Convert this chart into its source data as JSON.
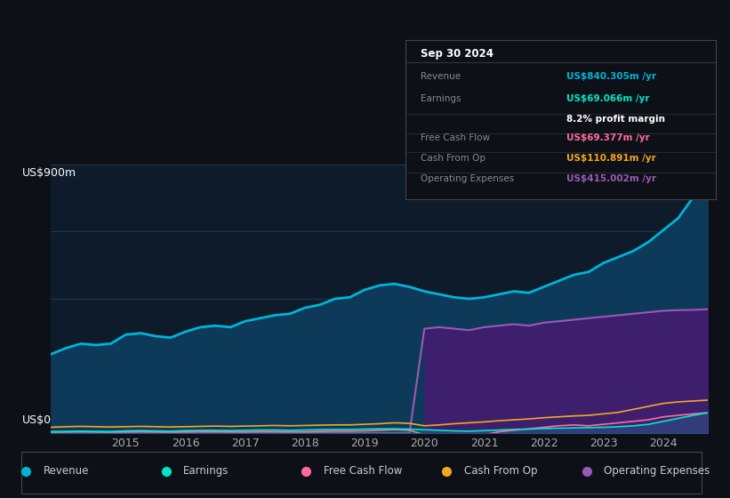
{
  "background_color": "#0d1117",
  "plot_bg_color": "#0d1b2a",
  "y_label_top": "US$900m",
  "y_label_bottom": "US$0",
  "colors": {
    "revenue": "#00b4d8",
    "earnings": "#00e5c8",
    "free_cash_flow": "#ff6b9d",
    "cash_from_op": "#f5a623",
    "operating_expenses": "#9b59b6"
  },
  "revenue_fill": "#0e3a5a",
  "op_exp_fill": "#3d1f6e",
  "legend_items": [
    {
      "label": "Revenue",
      "color": "#00b4d8"
    },
    {
      "label": "Earnings",
      "color": "#00e5c8"
    },
    {
      "label": "Free Cash Flow",
      "color": "#ff6b9d"
    },
    {
      "label": "Cash From Op",
      "color": "#f5a623"
    },
    {
      "label": "Operating Expenses",
      "color": "#9b59b6"
    }
  ],
  "infobox": {
    "title": "Sep 30 2024",
    "rows": [
      {
        "label": "Revenue",
        "value": "US$840.305m /yr",
        "color": "#00b4d8"
      },
      {
        "label": "Earnings",
        "value": "US$69.066m /yr",
        "color": "#00e5c8"
      },
      {
        "label": "",
        "value": "8.2% profit margin",
        "color": "#ffffff"
      },
      {
        "label": "Free Cash Flow",
        "value": "US$69.377m /yr",
        "color": "#ff6b9d"
      },
      {
        "label": "Cash From Op",
        "value": "US$110.891m /yr",
        "color": "#f5a623"
      },
      {
        "label": "Operating Expenses",
        "value": "US$415.002m /yr",
        "color": "#9b59b6"
      }
    ]
  },
  "x_ticks": [
    2015,
    2016,
    2017,
    2018,
    2019,
    2020,
    2021,
    2022,
    2023,
    2024
  ],
  "years": [
    2013.75,
    2014.0,
    2014.25,
    2014.5,
    2014.75,
    2015.0,
    2015.25,
    2015.5,
    2015.75,
    2016.0,
    2016.25,
    2016.5,
    2016.75,
    2017.0,
    2017.25,
    2017.5,
    2017.75,
    2018.0,
    2018.25,
    2018.5,
    2018.75,
    2019.0,
    2019.25,
    2019.5,
    2019.75,
    2020.0,
    2020.25,
    2020.5,
    2020.75,
    2021.0,
    2021.25,
    2021.5,
    2021.75,
    2022.0,
    2022.25,
    2022.5,
    2022.75,
    2023.0,
    2023.25,
    2023.5,
    2023.75,
    2024.0,
    2024.25,
    2024.5,
    2024.75
  ],
  "revenue": [
    265,
    285,
    300,
    295,
    300,
    330,
    335,
    325,
    320,
    340,
    355,
    360,
    355,
    375,
    385,
    395,
    400,
    420,
    430,
    450,
    455,
    480,
    495,
    500,
    490,
    475,
    465,
    455,
    450,
    455,
    465,
    475,
    470,
    490,
    510,
    530,
    540,
    570,
    590,
    610,
    640,
    680,
    720,
    790,
    840
  ],
  "earnings": [
    5,
    6,
    7,
    6,
    6,
    8,
    9,
    8,
    7,
    9,
    10,
    10,
    9,
    10,
    11,
    11,
    10,
    11,
    12,
    13,
    13,
    14,
    15,
    15,
    14,
    12,
    10,
    8,
    7,
    9,
    11,
    13,
    14,
    16,
    17,
    18,
    19,
    20,
    22,
    25,
    30,
    40,
    50,
    60,
    69
  ],
  "free_cash_flow": [
    5,
    5,
    6,
    5,
    4,
    5,
    6,
    5,
    4,
    5,
    6,
    6,
    5,
    5,
    6,
    6,
    5,
    5,
    6,
    7,
    7,
    8,
    10,
    12,
    10,
    -5,
    -8,
    -10,
    -12,
    -5,
    5,
    10,
    15,
    20,
    25,
    28,
    25,
    30,
    35,
    40,
    45,
    55,
    60,
    65,
    69
  ],
  "cash_from_op": [
    20,
    22,
    23,
    22,
    21,
    22,
    23,
    22,
    21,
    22,
    23,
    24,
    23,
    24,
    25,
    26,
    25,
    26,
    27,
    28,
    28,
    30,
    32,
    35,
    33,
    25,
    28,
    32,
    35,
    38,
    42,
    45,
    48,
    52,
    55,
    58,
    60,
    65,
    70,
    80,
    90,
    100,
    105,
    108,
    111
  ],
  "operating_expenses": [
    0,
    0,
    0,
    0,
    0,
    0,
    0,
    0,
    0,
    0,
    0,
    0,
    0,
    0,
    0,
    0,
    0,
    0,
    0,
    0,
    0,
    0,
    0,
    0,
    0,
    350,
    355,
    350,
    345,
    355,
    360,
    365,
    360,
    370,
    375,
    380,
    385,
    390,
    395,
    400,
    405,
    410,
    412,
    413,
    415
  ],
  "ylim": [
    0,
    900
  ],
  "grid_lines": [
    225,
    450,
    675,
    900
  ]
}
